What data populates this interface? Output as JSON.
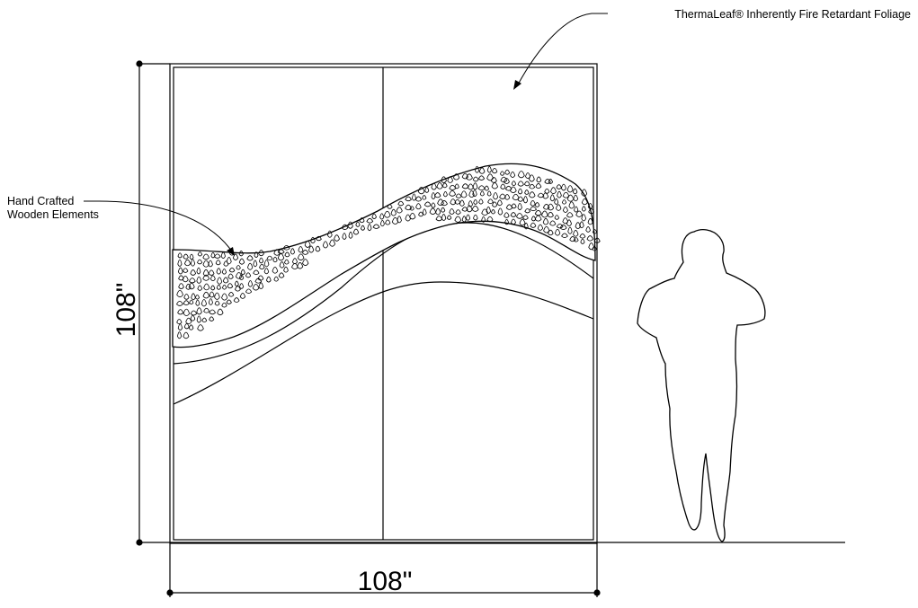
{
  "annotations": {
    "foliage_label": "ThermaLeaf® Inherently Fire Retardant Foliage",
    "wood_label_line1": "Hand Crafted",
    "wood_label_line2": "Wooden Elements"
  },
  "dimensions": {
    "height_label": "108\"",
    "width_label": "108\""
  },
  "colors": {
    "line": "#000000",
    "background": "#ffffff"
  },
  "icons": {
    "figure": "human-silhouette-icon"
  }
}
